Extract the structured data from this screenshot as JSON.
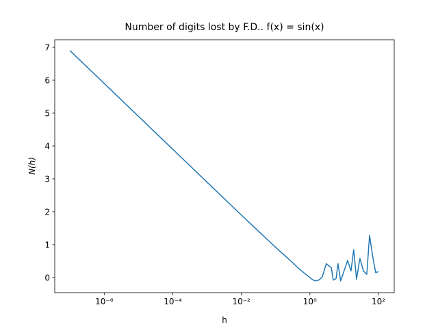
{
  "chart_data": {
    "type": "line",
    "title": "Number of digits lost by F.D.. f(x) = sin(x)",
    "xlabel": "h",
    "ylabel": "N(h)",
    "xscale": "log",
    "x": [
      1e-07,
      1e-06,
      1e-05,
      0.0001,
      0.001,
      0.01,
      0.1,
      0.3,
      0.5,
      0.8,
      1.1,
      1.4,
      1.8,
      2.3,
      3.0,
      4.2,
      4.8,
      5.8,
      6.6,
      7.9,
      12.6,
      15.8,
      19,
      22.9,
      28.8,
      36.3,
      45.7,
      55,
      69,
      83,
      100
    ],
    "series": [
      {
        "name": "N(h)",
        "color": "#1f77b4",
        "values": [
          6.9,
          5.9,
          4.9,
          3.9,
          2.9,
          1.9,
          0.92,
          0.47,
          0.25,
          0.08,
          -0.04,
          -0.1,
          -0.08,
          0.02,
          0.42,
          0.3,
          -0.08,
          -0.03,
          0.42,
          -0.1,
          0.52,
          0.2,
          0.85,
          -0.05,
          0.58,
          0.2,
          0.1,
          1.28,
          0.6,
          0.15,
          0.18
        ]
      }
    ],
    "xlim": [
      3.6e-08,
      288
    ],
    "ylim": [
      -0.46,
      7.23
    ],
    "xticks": [
      {
        "value": 1e-06,
        "label": "10⁻⁶"
      },
      {
        "value": 0.0001,
        "label": "10⁻⁴"
      },
      {
        "value": 0.01,
        "label": "10⁻²"
      },
      {
        "value": 1,
        "label": "10⁰"
      },
      {
        "value": 100,
        "label": "10²"
      }
    ],
    "yticks": [
      0,
      1,
      2,
      3,
      4,
      5,
      6,
      7
    ]
  }
}
